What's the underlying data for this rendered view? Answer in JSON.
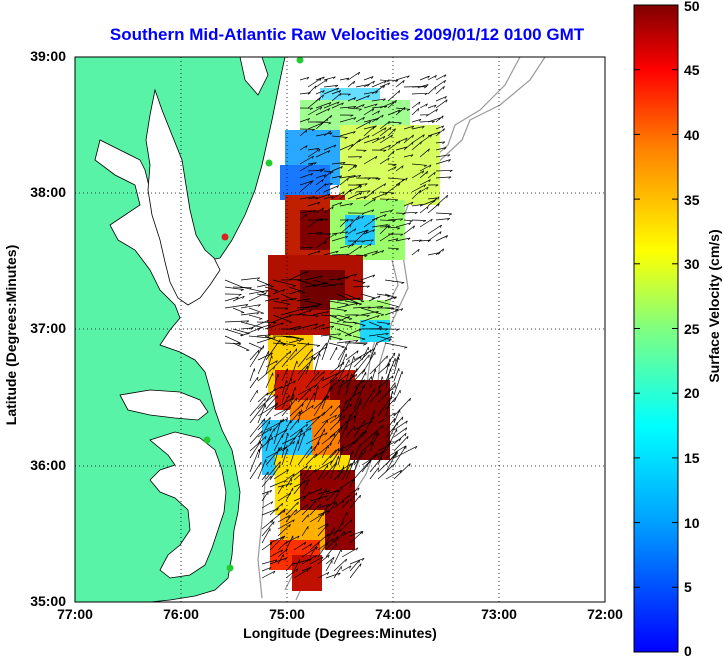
{
  "title": "Southern Mid-Atlantic Raw Velocities 2009/01/12 0100 GMT",
  "axes": {
    "xlabel": "Longitude (Degrees:Minutes)",
    "ylabel": "Latitude (Degrees:Minutes)",
    "x_ticks": [
      "77:00",
      "76:00",
      "75:00",
      "74:00",
      "73:00",
      "72:00"
    ],
    "y_ticks": [
      "39:00",
      "38:00",
      "37:00",
      "36:00",
      "35:00"
    ],
    "x_range_deg_west": [
      77,
      72
    ],
    "y_range_deg_north": [
      35,
      39
    ],
    "grid": "dotted"
  },
  "colorbar": {
    "label": "Surface Velocity (cm/s)",
    "ticks": [
      "50",
      "45",
      "40",
      "35",
      "30",
      "25",
      "20",
      "15",
      "10",
      "5",
      "0"
    ],
    "range": [
      0,
      50
    ],
    "colormap": "jet"
  },
  "colors": {
    "land": "#59f3a8",
    "ocean": "#ffffff",
    "coast_line": "#000000",
    "bathymetry": "#999999",
    "station_green": "#22cc33",
    "station_red": "#dd2222",
    "title": "#0000ff"
  },
  "stations": [
    {
      "name": "green-station",
      "status": "active"
    },
    {
      "name": "green-station",
      "status": "active"
    },
    {
      "name": "red-station",
      "status": "inactive"
    },
    {
      "name": "green-station",
      "status": "active"
    },
    {
      "name": "green-station",
      "status": "active"
    }
  ]
}
